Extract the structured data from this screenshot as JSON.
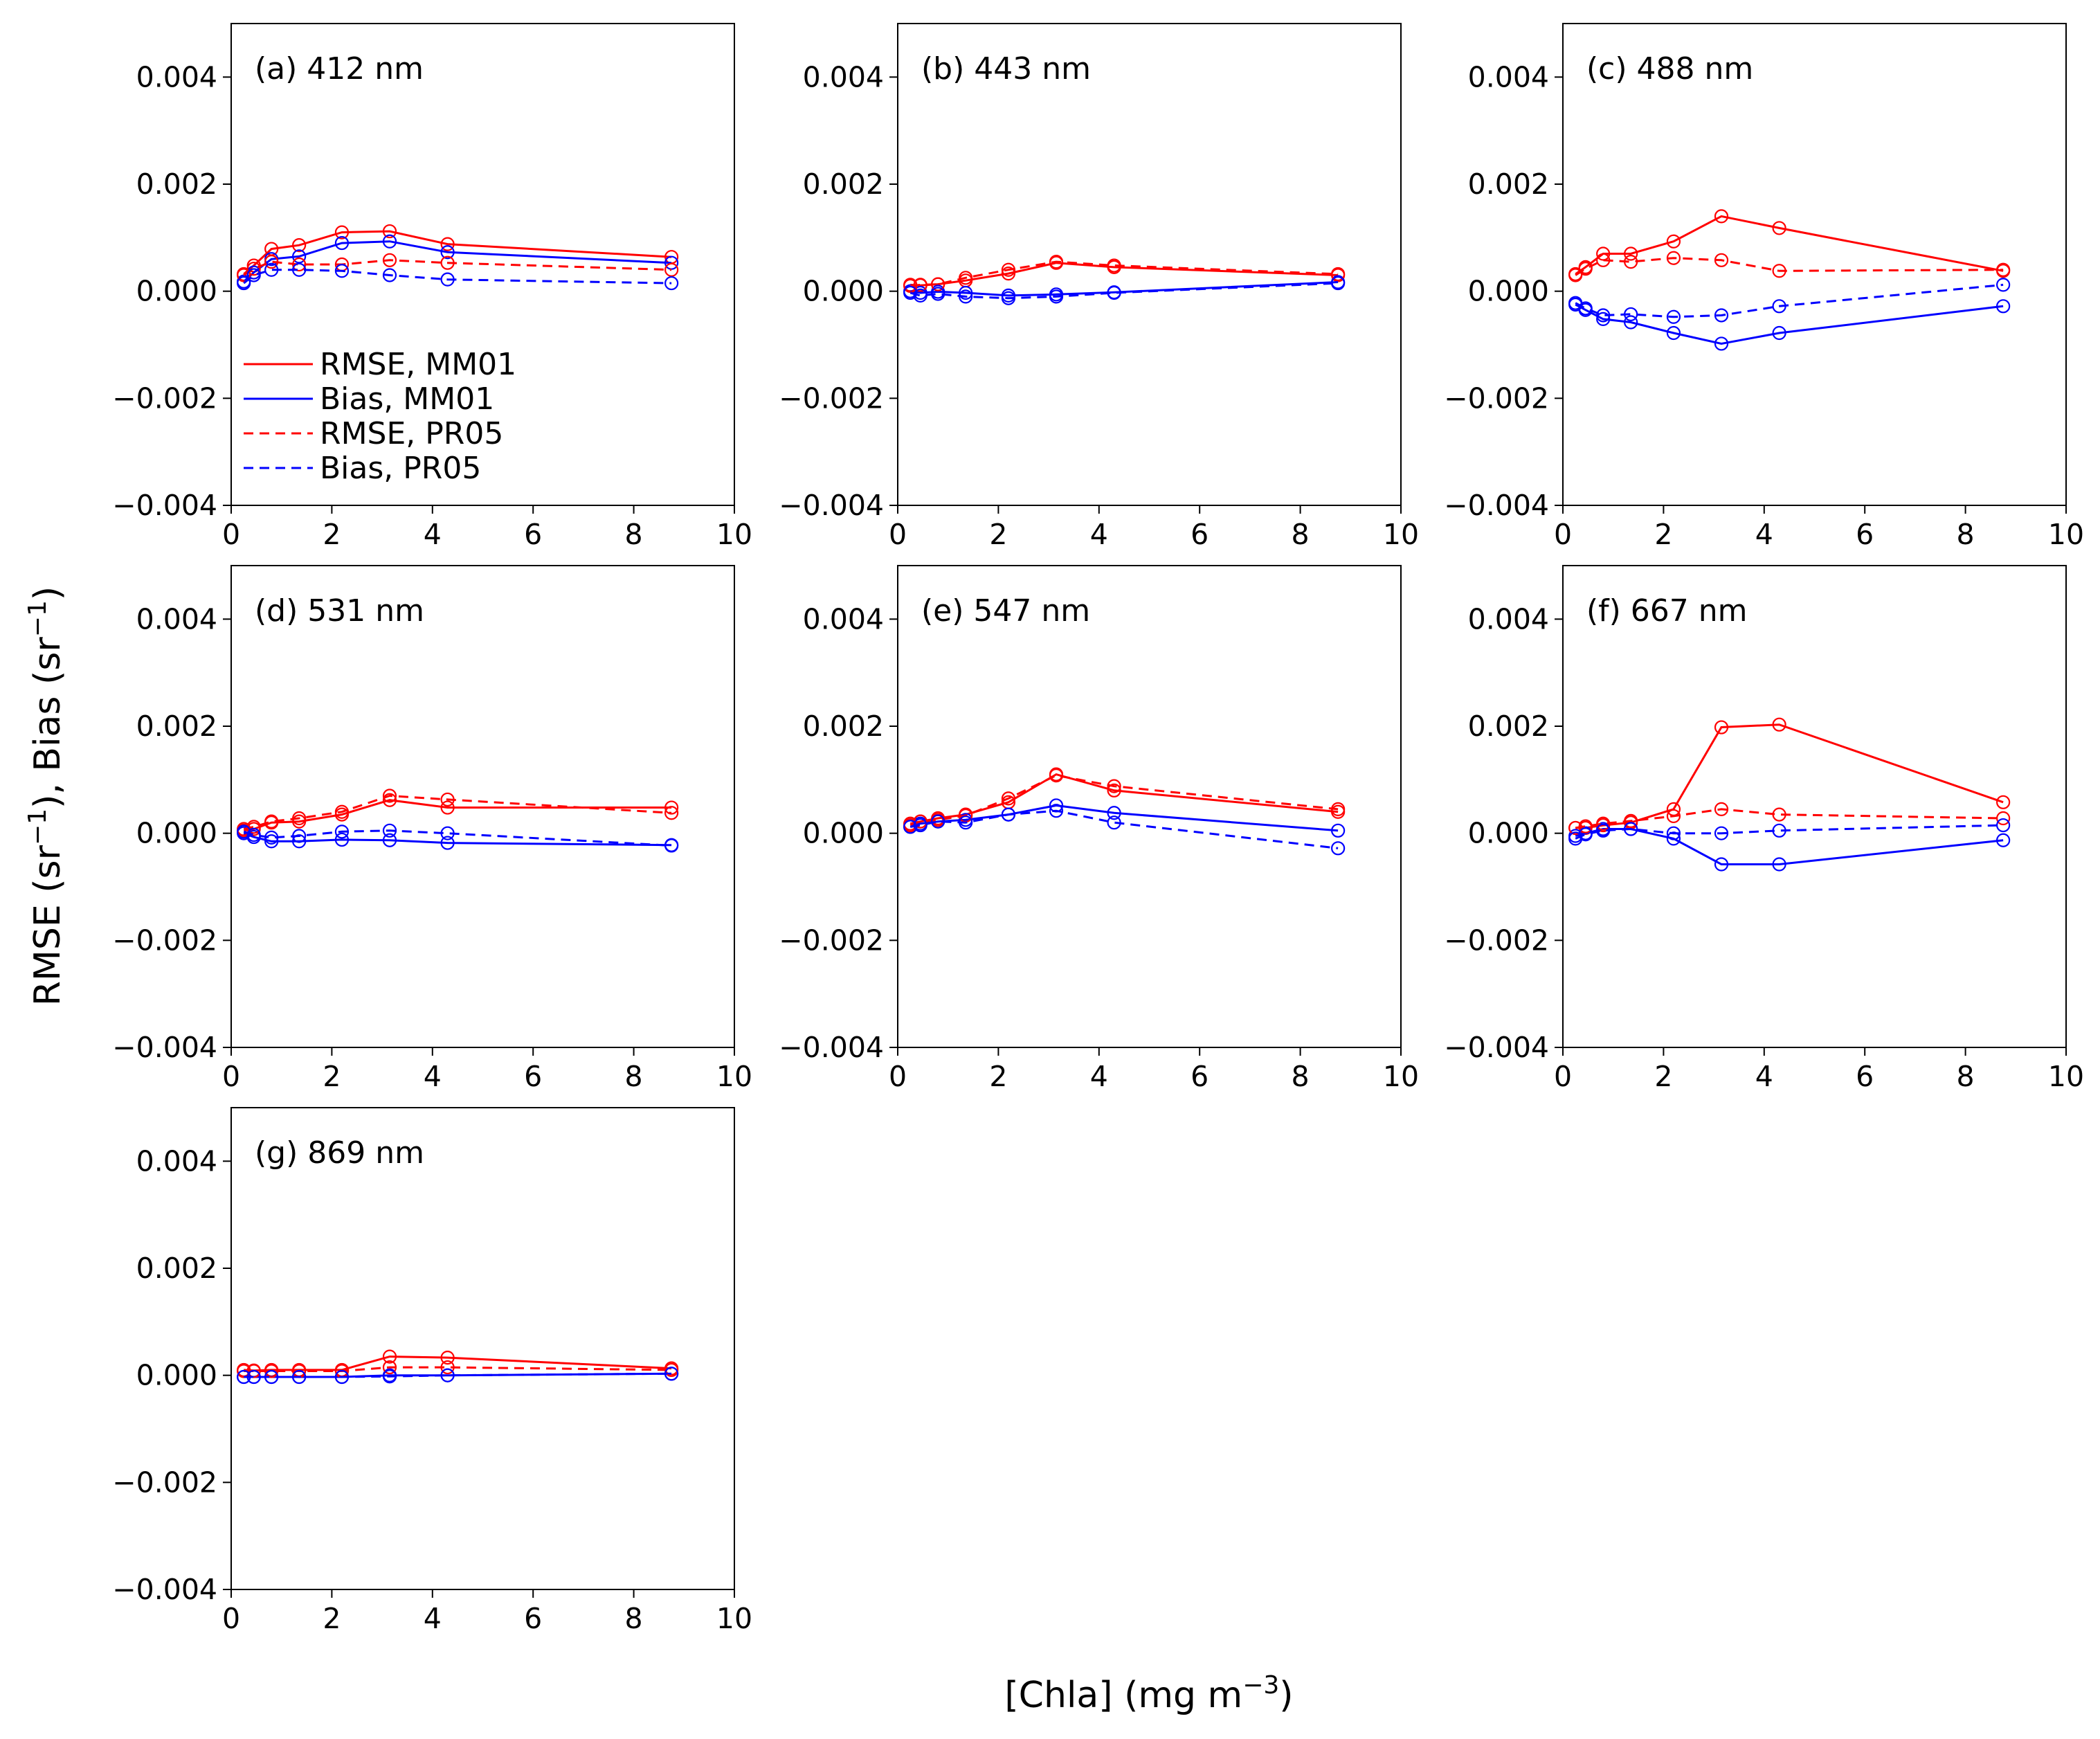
{
  "figure": {
    "ylabel_main": "RMSE (sr",
    "ylabel_sup1": "−1",
    "ylabel_mid": "), Bias (sr",
    "ylabel_sup2": "−1",
    "ylabel_end": ")",
    "xlabel_main": "[Chla] (mg m",
    "xlabel_sup": "−3",
    "xlabel_end": ")"
  },
  "legend": [
    {
      "label": "RMSE, MM01",
      "color": "#ff0000",
      "dash": "solid"
    },
    {
      "label": "Bias, MM01",
      "color": "#0000ff",
      "dash": "solid"
    },
    {
      "label": "RMSE, PR05",
      "color": "#ff0000",
      "dash": "dashed"
    },
    {
      "label": "Bias, PR05",
      "color": "#0000ff",
      "dash": "dashed"
    }
  ],
  "chart_data": [
    {
      "type": "line",
      "title": "(a) 412 nm",
      "x": [
        0.25,
        0.45,
        0.8,
        1.35,
        2.2,
        3.15,
        4.3,
        8.75
      ],
      "xlim": [
        0,
        10
      ],
      "ylim": [
        -0.004,
        0.005
      ],
      "xticks": [
        "0",
        "2",
        "4",
        "6",
        "8",
        "10"
      ],
      "yticks": [
        "−0.004",
        "−0.002",
        "0.000",
        "0.002",
        "0.004"
      ],
      "series": [
        {
          "name": "RMSE, MM01",
          "values": [
            0.00032,
            0.00048,
            0.00079,
            0.00086,
            0.0011,
            0.00112,
            0.00088,
            0.00064
          ]
        },
        {
          "name": "Bias, MM01",
          "values": [
            0.00018,
            0.00035,
            0.0006,
            0.00065,
            0.0009,
            0.00093,
            0.00073,
            0.00053
          ]
        },
        {
          "name": "RMSE, PR05",
          "values": [
            0.0003,
            0.00042,
            0.00055,
            0.0005,
            0.0005,
            0.00058,
            0.00053,
            0.0004
          ]
        },
        {
          "name": "Bias, PR05",
          "values": [
            0.00015,
            0.0003,
            0.0004,
            0.0004,
            0.00038,
            0.0003,
            0.00022,
            0.00015
          ]
        }
      ]
    },
    {
      "type": "line",
      "title": "(b) 443 nm",
      "x": [
        0.25,
        0.45,
        0.8,
        1.35,
        2.2,
        3.15,
        4.3,
        8.75
      ],
      "xlim": [
        0,
        10
      ],
      "ylim": [
        -0.004,
        0.005
      ],
      "xticks": [
        "0",
        "2",
        "4",
        "6",
        "8",
        "10"
      ],
      "yticks": [
        "−0.004",
        "−0.002",
        "0.000",
        "0.002",
        "0.004"
      ],
      "series": [
        {
          "name": "RMSE, MM01",
          "values": [
            0.00012,
            0.00011,
            0.00013,
            0.0002,
            0.00033,
            0.00053,
            0.00045,
            0.0003
          ]
        },
        {
          "name": "Bias, MM01",
          "values": [
            0.0,
            -3e-05,
            -1e-05,
            -3e-05,
            -8e-05,
            -6e-05,
            -2e-05,
            0.00017
          ]
        },
        {
          "name": "RMSE, PR05",
          "values": [
            0.0001,
            0.00012,
            0.00013,
            0.00025,
            0.0004,
            0.00055,
            0.00048,
            0.00032
          ]
        },
        {
          "name": "Bias, PR05",
          "values": [
            -3e-05,
            -8e-05,
            -5e-05,
            -0.0001,
            -0.00013,
            -0.0001,
            -3e-05,
            0.00015
          ]
        }
      ]
    },
    {
      "type": "line",
      "title": "(c) 488 nm",
      "x": [
        0.25,
        0.45,
        0.8,
        1.35,
        2.2,
        3.15,
        4.3,
        8.75
      ],
      "xlim": [
        0,
        10
      ],
      "ylim": [
        -0.004,
        0.005
      ],
      "xticks": [
        "0",
        "2",
        "4",
        "6",
        "8",
        "10"
      ],
      "yticks": [
        "−0.004",
        "−0.002",
        "0.000",
        "0.002",
        "0.004"
      ],
      "series": [
        {
          "name": "RMSE, MM01",
          "values": [
            0.00032,
            0.00045,
            0.0007,
            0.0007,
            0.00093,
            0.0014,
            0.00118,
            0.00038
          ]
        },
        {
          "name": "Bias, MM01",
          "values": [
            -0.00025,
            -0.00035,
            -0.00052,
            -0.00058,
            -0.00078,
            -0.00098,
            -0.00078,
            -0.00028
          ]
        },
        {
          "name": "RMSE, PR05",
          "values": [
            0.0003,
            0.00042,
            0.00058,
            0.00055,
            0.00062,
            0.00058,
            0.00038,
            0.0004
          ]
        },
        {
          "name": "Bias, PR05",
          "values": [
            -0.00022,
            -0.00032,
            -0.00045,
            -0.00043,
            -0.00048,
            -0.00045,
            -0.00028,
            0.00012
          ]
        }
      ]
    },
    {
      "type": "line",
      "title": "(d) 531 nm",
      "x": [
        0.25,
        0.45,
        0.8,
        1.35,
        2.2,
        3.15,
        4.3,
        8.75
      ],
      "xlim": [
        0,
        10
      ],
      "ylim": [
        -0.004,
        0.005
      ],
      "xticks": [
        "0",
        "2",
        "4",
        "6",
        "8",
        "10"
      ],
      "yticks": [
        "−0.004",
        "−0.002",
        "0.000",
        "0.002",
        "0.004"
      ],
      "series": [
        {
          "name": "RMSE, MM01",
          "values": [
            5e-05,
            8e-05,
            0.0002,
            0.00022,
            0.00035,
            0.00062,
            0.00048,
            0.00048
          ]
        },
        {
          "name": "Bias, MM01",
          "values": [
            0.0,
            -7e-05,
            -0.00015,
            -0.00015,
            -0.00012,
            -0.00013,
            -0.00018,
            -0.00022
          ]
        },
        {
          "name": "RMSE, PR05",
          "values": [
            8e-05,
            0.00012,
            0.00022,
            0.00028,
            0.0004,
            0.0007,
            0.00063,
            0.00038
          ]
        },
        {
          "name": "Bias, PR05",
          "values": [
            3e-05,
            -3e-05,
            -8e-05,
            -5e-05,
            3e-05,
            5e-05,
            0.0,
            -0.00023
          ]
        }
      ]
    },
    {
      "type": "line",
      "title": "(e) 547 nm",
      "x": [
        0.25,
        0.45,
        0.8,
        1.35,
        2.2,
        3.15,
        4.3,
        8.75
      ],
      "xlim": [
        0,
        10
      ],
      "ylim": [
        -0.004,
        0.005
      ],
      "xticks": [
        "0",
        "2",
        "4",
        "6",
        "8",
        "10"
      ],
      "yticks": [
        "−0.004",
        "−0.002",
        "0.000",
        "0.002",
        "0.004"
      ],
      "series": [
        {
          "name": "RMSE, MM01",
          "values": [
            0.00015,
            0.00022,
            0.00028,
            0.00035,
            0.00058,
            0.0011,
            0.0008,
            0.0004
          ]
        },
        {
          "name": "Bias, MM01",
          "values": [
            0.00012,
            0.00018,
            0.00022,
            0.00025,
            0.00035,
            0.00052,
            0.00038,
            5e-05
          ]
        },
        {
          "name": "RMSE, PR05",
          "values": [
            0.00018,
            0.00022,
            0.00025,
            0.00033,
            0.00065,
            0.00108,
            0.00088,
            0.00045
          ]
        },
        {
          "name": "Bias, PR05",
          "values": [
            0.00012,
            0.00015,
            0.00022,
            0.0002,
            0.00035,
            0.00042,
            0.0002,
            -0.00028
          ]
        }
      ]
    },
    {
      "type": "line",
      "title": "(f) 667 nm",
      "x": [
        0.25,
        0.45,
        0.8,
        1.35,
        2.2,
        3.15,
        4.3,
        8.75
      ],
      "xlim": [
        0,
        10
      ],
      "ylim": [
        -0.004,
        0.005
      ],
      "xticks": [
        "0",
        "2",
        "4",
        "6",
        "8",
        "10"
      ],
      "yticks": [
        "−0.004",
        "−0.002",
        "0.000",
        "0.002",
        "0.004"
      ],
      "series": [
        {
          "name": "RMSE, MM01",
          "values": [
            0.0001,
            0.0001,
            0.00015,
            0.0002,
            0.00045,
            0.00198,
            0.00203,
            0.00058
          ]
        },
        {
          "name": "Bias, MM01",
          "values": [
            -5e-05,
            0.0,
            8e-05,
            8e-05,
            -0.0001,
            -0.00058,
            -0.00058,
            -0.00013
          ]
        },
        {
          "name": "RMSE, PR05",
          "values": [
            0.0001,
            0.00013,
            0.00018,
            0.00023,
            0.00032,
            0.00045,
            0.00035,
            0.00028
          ]
        },
        {
          "name": "Bias, PR05",
          "values": [
            -0.0001,
            -2e-05,
            5e-05,
            8e-05,
            0.0,
            0.0,
            5e-05,
            0.00015
          ]
        }
      ]
    },
    {
      "type": "line",
      "title": "(g) 869 nm",
      "x": [
        0.25,
        0.45,
        0.8,
        1.35,
        2.2,
        3.15,
        4.3,
        8.75
      ],
      "xlim": [
        0,
        10
      ],
      "ylim": [
        -0.004,
        0.005
      ],
      "xticks": [
        "0",
        "2",
        "4",
        "6",
        "8",
        "10"
      ],
      "yticks": [
        "−0.004",
        "−0.002",
        "0.000",
        "0.002",
        "0.004"
      ],
      "series": [
        {
          "name": "RMSE, MM01",
          "values": [
            0.0001,
            9e-05,
            0.0001,
            0.0001,
            0.0001,
            0.00035,
            0.00033,
            0.00013
          ]
        },
        {
          "name": "Bias, MM01",
          "values": [
            -3e-05,
            -3e-05,
            -3e-05,
            -3e-05,
            -3e-05,
            0.0,
            0.0,
            3e-05
          ]
        },
        {
          "name": "RMSE, PR05",
          "values": [
            8e-05,
            8e-05,
            8e-05,
            8e-05,
            8e-05,
            0.00015,
            0.00015,
            0.0001
          ]
        },
        {
          "name": "Bias, PR05",
          "values": [
            -3e-05,
            -3e-05,
            -3e-05,
            -3e-05,
            -3e-05,
            -2e-05,
            0.0,
            3e-05
          ]
        }
      ]
    }
  ]
}
